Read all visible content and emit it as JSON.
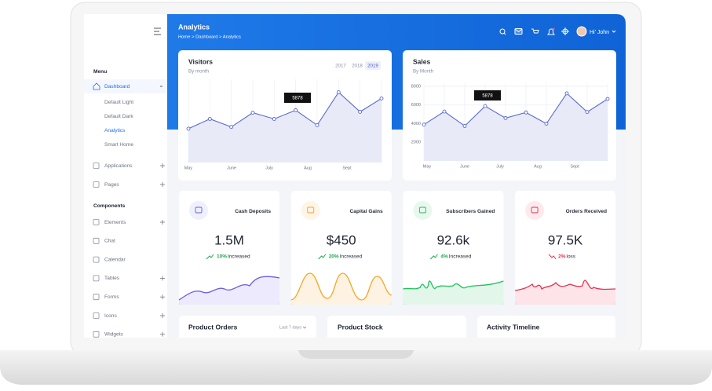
{
  "sidebar": {
    "menu_heading": "Menu",
    "dashboard": "Dashboard",
    "dashboard_items": [
      "Default Light",
      "Default Dark",
      "Analytics",
      "Smart Home"
    ],
    "apps": [
      "Applications",
      "Pages"
    ],
    "components_heading": "Components",
    "components": [
      "Elements",
      "Chat",
      "Calendar",
      "Tables",
      "Forms",
      "Icons",
      "Widgets"
    ]
  },
  "header": {
    "title": "Analytics",
    "breadcrumb": "Home > Dashboard > Analytics",
    "user": "Hi' John"
  },
  "year_tabs": [
    "2017",
    "2018",
    "2019"
  ],
  "chart_data": [
    {
      "type": "line",
      "title": "Visitors",
      "subtitle": "By month",
      "categories": [
        "May",
        null,
        "June",
        null,
        "July",
        null,
        "Aug",
        null,
        "Sept",
        null
      ],
      "values": [
        3800,
        4900,
        4000,
        5600,
        4900,
        5878,
        4200,
        7900,
        5700,
        7200
      ],
      "ylim": [
        0,
        9000
      ],
      "color": "#5a6acf",
      "grid": true
    },
    {
      "type": "line",
      "title": "Sales",
      "subtitle": "By Month",
      "categories": [
        "May",
        null,
        "June",
        null,
        "July",
        null,
        "Aug",
        null,
        "Sept",
        null
      ],
      "values": [
        3900,
        5300,
        3750,
        5878,
        4600,
        5200,
        4000,
        7250,
        5250,
        6650
      ],
      "ylim": [
        0,
        8000
      ],
      "yticks": [
        2000,
        4000,
        6000,
        8000
      ],
      "color": "#5a6acf",
      "grid": true
    }
  ],
  "stats": [
    {
      "title": "Cash Deposits",
      "value": "1.5M",
      "change": "10%",
      "change_text": "Increased"
    },
    {
      "title": "Capital Gains",
      "value": "$450",
      "change": "20%",
      "change_text": "Increased"
    },
    {
      "title": "Subscribers Gained",
      "value": "92.6k",
      "change": "4%",
      "change_text": "Increased"
    },
    {
      "title": "Orders Received",
      "value": "97.5K",
      "change": "2%",
      "change_text": "loss"
    }
  ],
  "bottom": {
    "orders": "Product Orders",
    "orders_filter": "Last 7 days",
    "stock": "Product Stock",
    "timeline": "Activity Timeline"
  }
}
